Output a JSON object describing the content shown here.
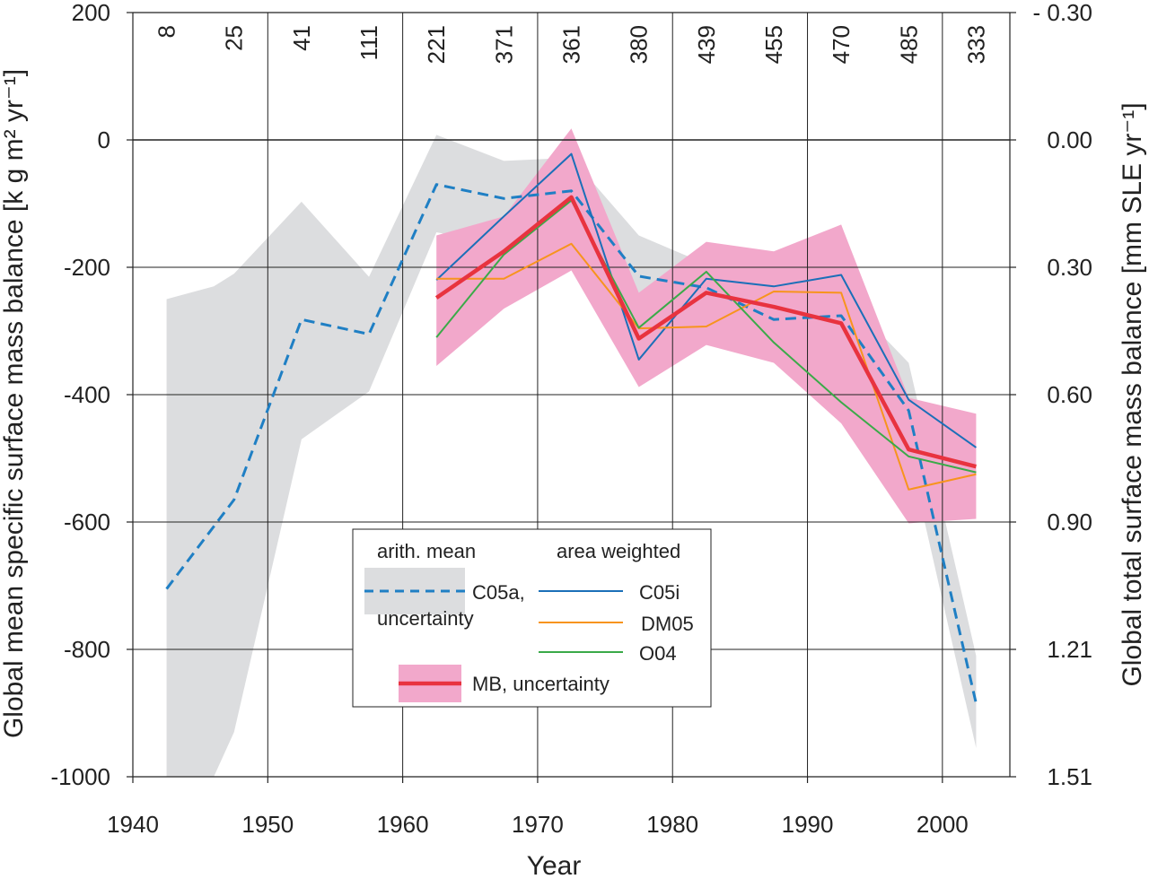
{
  "chart_data": {
    "type": "line",
    "xlabel": "Year",
    "ylabel": "Global mean specific surface mass balance [k g m² yr⁻¹]",
    "ylabel_right": "Global  total surface mass balance [mm SLE yr⁻¹]",
    "xlim": [
      1940,
      2005
    ],
    "ylim": [
      -1000,
      200
    ],
    "x_ticks": [
      1940,
      1950,
      1960,
      1970,
      1980,
      1990,
      2000
    ],
    "y_ticks": [
      200,
      0,
      -200,
      -400,
      -600,
      -800,
      -1000
    ],
    "y_ticks_right": [
      {
        "value": 200,
        "label": "- 0.30"
      },
      {
        "value": 0,
        "label": "0.00"
      },
      {
        "value": -200,
        "label": "0.30"
      },
      {
        "value": -400,
        "label": "0.60"
      },
      {
        "value": -600,
        "label": "0.90"
      },
      {
        "value": -800,
        "label": "1.21"
      },
      {
        "value": -1000,
        "label": "1.51"
      }
    ],
    "grid": true,
    "counts": [
      {
        "x": 1942.5,
        "label": "8"
      },
      {
        "x": 1947.5,
        "label": "25"
      },
      {
        "x": 1952.5,
        "label": "41"
      },
      {
        "x": 1957.5,
        "label": "111"
      },
      {
        "x": 1962.5,
        "label": "221"
      },
      {
        "x": 1967.5,
        "label": "371"
      },
      {
        "x": 1972.5,
        "label": "361"
      },
      {
        "x": 1977.5,
        "label": "380"
      },
      {
        "x": 1982.5,
        "label": "439"
      },
      {
        "x": 1987.5,
        "label": "455"
      },
      {
        "x": 1992.5,
        "label": "470"
      },
      {
        "x": 1997.5,
        "label": "485"
      },
      {
        "x": 2002.5,
        "label": "333"
      }
    ],
    "bands": [
      {
        "name": "C05a uncertainty",
        "color": "#dcdddf",
        "x": [
          1942.5,
          1946,
          1947.5,
          1952.5,
          1957.5,
          1962.5,
          1967.5,
          1972.5,
          1977.5,
          1982.5,
          1987.5,
          1992.5,
          1997.5,
          2002.5
        ],
        "upper": [
          -250,
          -230,
          -210,
          -97,
          -215,
          8,
          -33,
          -28,
          -150,
          -195,
          -235,
          -240,
          -350,
          -810
        ],
        "lower": [
          -1000,
          -1000,
          -930,
          -470,
          -395,
          -145,
          -165,
          -145,
          -295,
          -290,
          -335,
          -320,
          -490,
          -955
        ]
      },
      {
        "name": "MB uncertainty",
        "color": "#f2a8cb",
        "x": [
          1962.5,
          1967.5,
          1972.5,
          1977.5,
          1982.5,
          1987.5,
          1992.5,
          1997.5,
          2002.5
        ],
        "upper": [
          -150,
          -120,
          18,
          -240,
          -160,
          -175,
          -133,
          -405,
          -430
        ],
        "lower": [
          -355,
          -265,
          -205,
          -388,
          -322,
          -350,
          -445,
          -602,
          -595
        ]
      }
    ],
    "series": [
      {
        "name": "C05a",
        "style": "dashed",
        "color": "#1f7fc4",
        "width": 3,
        "x": [
          1942.5,
          1947.5,
          1952.5,
          1957.5,
          1962.5,
          1967.5,
          1972.5,
          1977.5,
          1982.5,
          1987.5,
          1992.5,
          1997.5,
          2002.5
        ],
        "values": [
          -705,
          -565,
          -282,
          -305,
          -70,
          -92,
          -80,
          -214,
          -232,
          -282,
          -276,
          -425,
          -885
        ]
      },
      {
        "name": "C05i",
        "style": "solid",
        "color": "#1b6fb8",
        "width": 2,
        "x": [
          1962.5,
          1967.5,
          1972.5,
          1977.5,
          1982.5,
          1987.5,
          1992.5,
          1997.5,
          2002.5
        ],
        "values": [
          -220,
          -120,
          -22,
          -345,
          -218,
          -230,
          -212,
          -408,
          -483
        ]
      },
      {
        "name": "DM05",
        "style": "solid",
        "color": "#f7941d",
        "width": 2,
        "x": [
          1962.5,
          1967.5,
          1972.5,
          1977.5,
          1982.5,
          1987.5,
          1992.5,
          1997.5,
          2002.5
        ],
        "values": [
          -218,
          -218,
          -163,
          -296,
          -293,
          -238,
          -240,
          -549,
          -525
        ]
      },
      {
        "name": "O04",
        "style": "solid",
        "color": "#3aaa48",
        "width": 2,
        "x": [
          1962.5,
          1967.5,
          1972.5,
          1977.5,
          1982.5,
          1987.5,
          1992.5,
          1997.5,
          2002.5
        ],
        "values": [
          -310,
          -180,
          -95,
          -295,
          -207,
          -318,
          -412,
          -497,
          -522
        ]
      },
      {
        "name": "MB",
        "style": "solid",
        "color": "#e8333f",
        "width": 4.5,
        "x": [
          1962.5,
          1967.5,
          1972.5,
          1977.5,
          1982.5,
          1987.5,
          1992.5,
          1997.5,
          2002.5
        ],
        "values": [
          -248,
          -175,
          -90,
          -312,
          -240,
          -262,
          -288,
          -486,
          -513
        ]
      }
    ],
    "legend": {
      "placement": "lower center",
      "heading_left": "arith. mean",
      "heading_right": "area weighted",
      "c05a_line1": "C05a,",
      "c05a_line2": "uncertainty",
      "c05i": "C05i",
      "dm05": "DM05",
      "o04": "O04",
      "mb": "MB, uncertainty"
    }
  }
}
